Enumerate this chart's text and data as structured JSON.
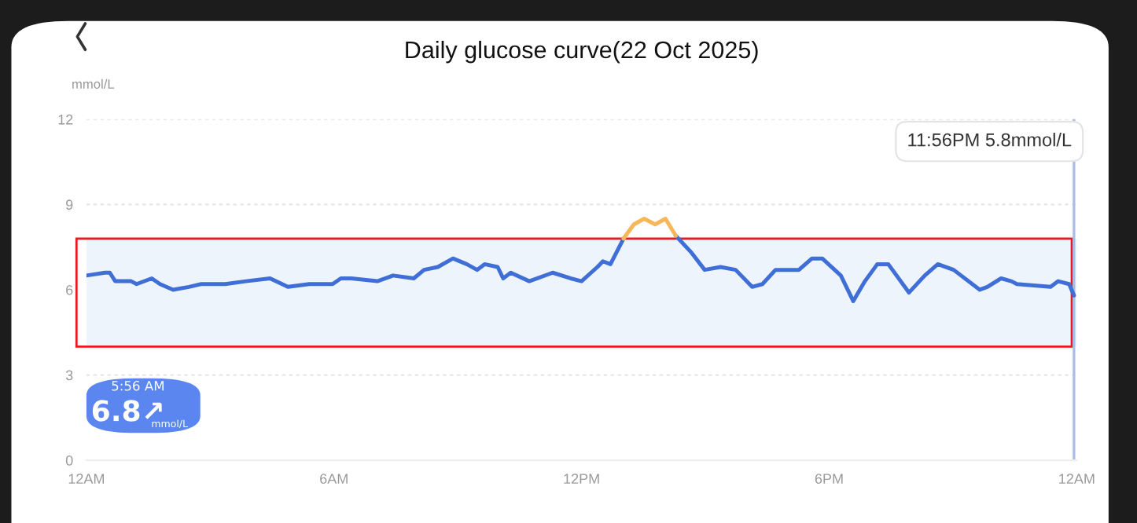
{
  "chart_data": {
    "type": "line",
    "title": "Daily glucose curve(22 Oct 2025)",
    "ylabel": "mmol/L",
    "x": [
      "2025-10-22T00:00",
      "2025-10-22T00:27",
      "2025-10-22T00:34",
      "2025-10-22T00:42",
      "2025-10-22T01:05",
      "2025-10-22T01:13",
      "2025-10-22T01:35",
      "2025-10-22T01:47",
      "2025-10-22T02:06",
      "2025-10-22T02:29",
      "2025-10-22T02:47",
      "2025-10-22T03:22",
      "2025-10-22T03:52",
      "2025-10-22T04:27",
      "2025-10-22T04:53",
      "2025-10-22T05:24",
      "2025-10-22T05:58",
      "2025-10-22T06:10",
      "2025-10-22T06:25",
      "2025-10-22T07:03",
      "2025-10-22T07:26",
      "2025-10-22T07:56",
      "2025-10-22T08:11",
      "2025-10-22T08:31",
      "2025-10-22T08:53",
      "2025-10-22T09:13",
      "2025-10-22T09:28",
      "2025-10-22T09:39",
      "2025-10-22T09:58",
      "2025-10-22T10:06",
      "2025-10-22T10:17",
      "2025-10-22T10:44",
      "2025-10-22T11:18",
      "2025-10-22T11:44",
      "2025-10-22T12:00",
      "2025-10-22T12:23",
      "2025-10-22T12:31",
      "2025-10-22T12:42",
      "2025-10-22T13:01",
      "2025-10-22T13:16",
      "2025-10-22T13:31",
      "2025-10-22T13:47",
      "2025-10-22T14:02",
      "2025-10-22T14:17",
      "2025-10-22T14:40",
      "2025-10-22T14:59",
      "2025-10-22T15:22",
      "2025-10-22T15:44",
      "2025-10-22T16:08",
      "2025-10-22T16:23",
      "2025-10-22T16:42",
      "2025-10-22T17:16",
      "2025-10-22T17:35",
      "2025-10-22T17:50",
      "2025-10-22T18:17",
      "2025-10-22T18:35",
      "2025-10-22T18:52",
      "2025-10-22T19:10",
      "2025-10-22T19:26",
      "2025-10-22T19:56",
      "2025-10-22T20:19",
      "2025-10-22T20:38",
      "2025-10-22T21:01",
      "2025-10-22T21:39",
      "2025-10-22T21:50",
      "2025-10-22T22:10",
      "2025-10-22T22:25",
      "2025-10-22T22:33",
      "2025-10-22T23:22",
      "2025-10-22T23:33",
      "2025-10-22T23:49",
      "2025-10-22T23:56"
    ],
    "series": [
      {
        "color": "#3f6fd6",
        "values": [
          6.5,
          6.6,
          6.6,
          6.3,
          6.3,
          6.2,
          6.4,
          6.2,
          6.0,
          6.1,
          6.2,
          6.2,
          6.3,
          6.4,
          6.1,
          6.2,
          6.2,
          6.4,
          6.4,
          6.3,
          6.5,
          6.4,
          6.7,
          6.8,
          7.1,
          6.9,
          6.7,
          6.9,
          6.8,
          6.4,
          6.6,
          6.3,
          6.6,
          6.4,
          6.3,
          6.8,
          7.0,
          6.9,
          7.8,
          null,
          null,
          null,
          null,
          7.9,
          7.3,
          6.7,
          6.8,
          6.7,
          6.1,
          6.2,
          6.7,
          6.7,
          7.1,
          7.1,
          6.5,
          5.6,
          6.3,
          6.9,
          6.9,
          5.9,
          6.5,
          6.9,
          6.7,
          6.0,
          6.1,
          6.4,
          6.3,
          6.2,
          6.1,
          6.3,
          6.2,
          5.8
        ]
      },
      {
        "color": "#f5b75a",
        "x": [
          "2025-10-22T13:01",
          "2025-10-22T13:16",
          "2025-10-22T13:31",
          "2025-10-22T13:47",
          "2025-10-22T14:02",
          "2025-10-22T14:17"
        ],
        "values": [
          7.8,
          8.3,
          8.5,
          8.3,
          8.5,
          7.9
        ]
      }
    ],
    "xlim": [
      "2025-10-22T00:00",
      "2025-10-23T00:00"
    ],
    "xticks": [
      {
        "value": "2025-10-22T00:00",
        "label": "12AM"
      },
      {
        "value": "2025-10-22T06:00",
        "label": "6AM"
      },
      {
        "value": "2025-10-22T12:00",
        "label": "12PM"
      },
      {
        "value": "2025-10-22T18:00",
        "label": "6PM"
      },
      {
        "value": "2025-10-23T00:00",
        "label": "12AM"
      }
    ],
    "ylim": [
      0,
      12
    ],
    "yticks": [
      0,
      3,
      6,
      9,
      12
    ],
    "grid": "y",
    "bands": [
      {
        "axis": "y",
        "from": 4.0,
        "to": 7.8,
        "color": "#eef4fc"
      }
    ],
    "ref_lines": [
      {
        "axis": "x",
        "value": "2025-10-22T23:56",
        "color": "#a9bde6"
      }
    ],
    "annotations": [
      "11:56PM 5.8mmol/L",
      "5:56 AM",
      "6.8↗",
      "mmol/L"
    ]
  }
}
